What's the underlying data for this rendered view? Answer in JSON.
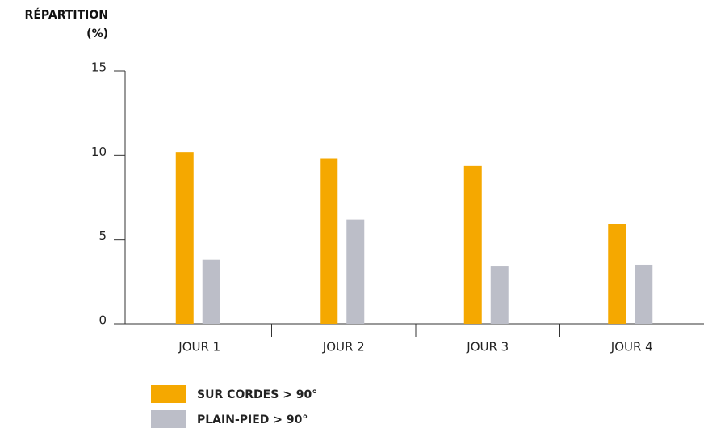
{
  "chart_data": {
    "type": "bar",
    "ylabel": "RÉPARTITION (%)",
    "categories": [
      "JOUR 1",
      "JOUR 2",
      "JOUR 3",
      "JOUR 4"
    ],
    "series": [
      {
        "name": "SUR CORDES > 90°",
        "color": "#f5a800",
        "values": [
          10.2,
          9.8,
          9.4,
          5.9
        ]
      },
      {
        "name": "PLAIN-PIED > 90°",
        "color": "#bcbec8",
        "values": [
          3.8,
          6.2,
          3.4,
          3.5
        ]
      }
    ],
    "ylim": [
      0,
      15
    ],
    "yticks": [
      0,
      5,
      10,
      15
    ],
    "grid": false,
    "legend": "bottom"
  }
}
